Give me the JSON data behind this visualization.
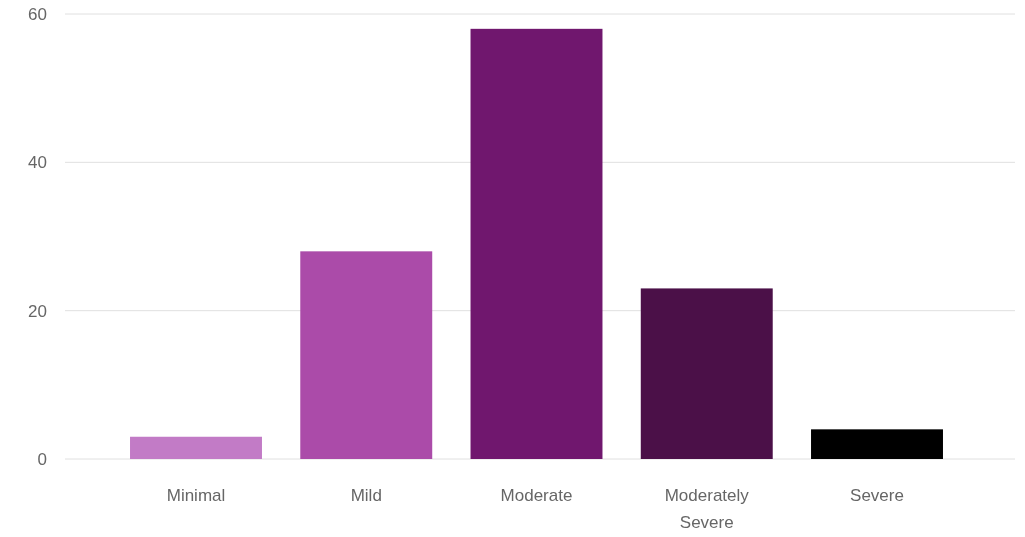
{
  "chart_data": {
    "type": "bar",
    "categories": [
      "Minimal",
      "Mild",
      "Moderate",
      "Moderately Severe",
      "Severe"
    ],
    "values": [
      3,
      28,
      58,
      23,
      4
    ],
    "colors": [
      "#c27bc6",
      "#ab4ba9",
      "#70176e",
      "#4b1048",
      "#000000"
    ],
    "ylim": [
      0,
      60
    ],
    "yticks": [
      0,
      20,
      40,
      60
    ],
    "grid": "y"
  }
}
